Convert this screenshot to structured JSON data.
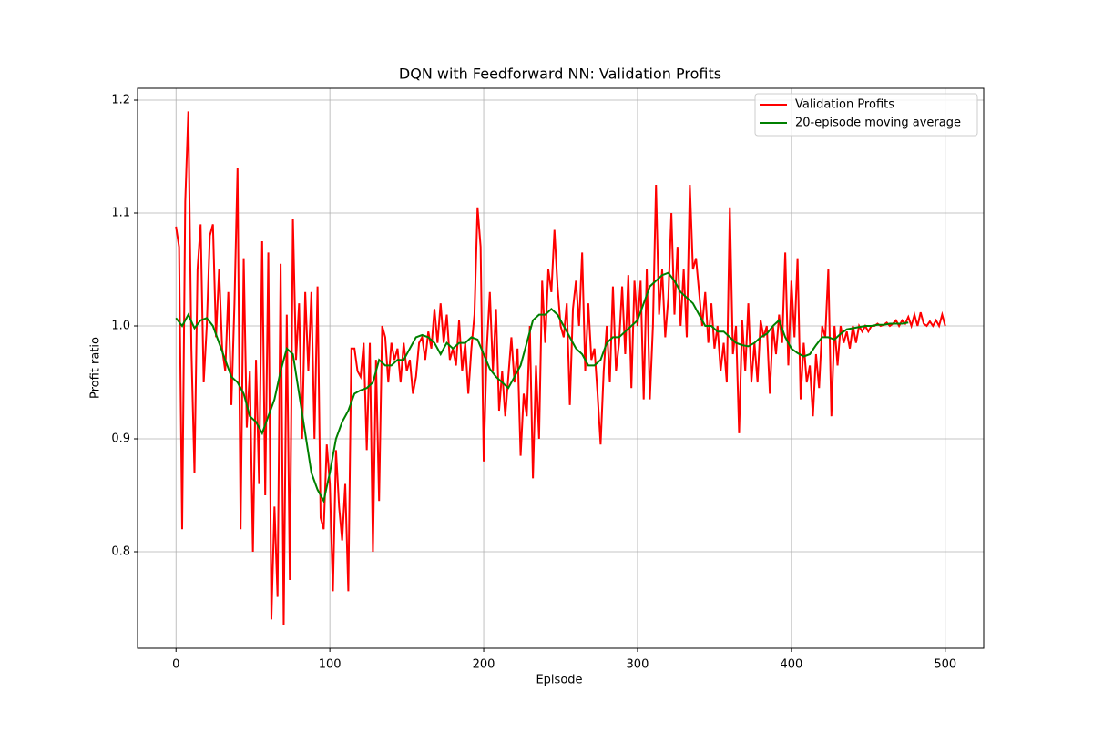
{
  "chart_data": {
    "type": "line",
    "title": "DQN with Feedforward NN: Validation Profits",
    "x_label": "Episode",
    "y_label": "Profit ratio",
    "xlim": [
      -25,
      525
    ],
    "xticks": [
      0,
      100,
      200,
      300,
      400,
      500
    ],
    "ylim": [
      0.7145,
      1.2105
    ],
    "yticks": [
      0.8,
      0.9,
      {
        "value": 1,
        "label": "1.0"
      },
      1.1,
      1.2
    ],
    "grid": true,
    "legend": "upper right",
    "series": [
      {
        "name": "Validation Profits",
        "color": "#ff0000",
        "x": [
          0,
          2,
          4,
          6,
          8,
          10,
          12,
          14,
          16,
          18,
          20,
          22,
          24,
          26,
          28,
          30,
          32,
          34,
          36,
          38,
          40,
          42,
          44,
          46,
          48,
          50,
          52,
          54,
          56,
          58,
          60,
          62,
          64,
          66,
          68,
          70,
          72,
          74,
          76,
          78,
          80,
          82,
          84,
          86,
          88,
          90,
          92,
          94,
          96,
          98,
          100,
          102,
          104,
          106,
          108,
          110,
          112,
          114,
          116,
          118,
          120,
          122,
          124,
          126,
          128,
          130,
          132,
          134,
          136,
          138,
          140,
          142,
          144,
          146,
          148,
          150,
          152,
          154,
          156,
          158,
          160,
          162,
          164,
          166,
          168,
          170,
          172,
          174,
          176,
          178,
          180,
          182,
          184,
          186,
          188,
          190,
          192,
          194,
          196,
          198,
          200,
          202,
          204,
          206,
          208,
          210,
          212,
          214,
          216,
          218,
          220,
          222,
          224,
          226,
          228,
          230,
          232,
          234,
          236,
          238,
          240,
          242,
          244,
          246,
          248,
          250,
          252,
          254,
          256,
          258,
          260,
          262,
          264,
          266,
          268,
          270,
          272,
          274,
          276,
          278,
          280,
          282,
          284,
          286,
          288,
          290,
          292,
          294,
          296,
          298,
          300,
          302,
          304,
          306,
          308,
          310,
          312,
          314,
          316,
          318,
          320,
          322,
          324,
          326,
          328,
          330,
          332,
          334,
          336,
          338,
          340,
          342,
          344,
          346,
          348,
          350,
          352,
          354,
          356,
          358,
          360,
          362,
          364,
          366,
          368,
          370,
          372,
          374,
          376,
          378,
          380,
          382,
          384,
          386,
          388,
          390,
          392,
          394,
          396,
          398,
          400,
          402,
          404,
          406,
          408,
          410,
          412,
          414,
          416,
          418,
          420,
          422,
          424,
          426,
          428,
          430,
          432,
          434,
          436,
          438,
          440,
          442,
          444,
          446,
          448,
          450,
          452,
          454,
          456,
          458,
          460,
          462,
          464,
          466,
          468,
          470,
          472,
          474,
          476,
          478,
          480,
          482,
          484,
          486,
          488,
          490,
          492,
          494,
          496,
          498,
          500
        ],
        "values": [
          1.088,
          1.07,
          0.82,
          1.11,
          1.19,
          0.98,
          0.87,
          1.05,
          1.09,
          0.95,
          1.0,
          1.08,
          1.09,
          0.99,
          1.05,
          0.98,
          0.96,
          1.03,
          0.93,
          1.02,
          1.14,
          0.82,
          1.06,
          0.91,
          0.96,
          0.8,
          0.97,
          0.86,
          1.075,
          0.85,
          1.065,
          0.74,
          0.84,
          0.76,
          1.055,
          0.735,
          1.01,
          0.775,
          1.095,
          0.97,
          1.02,
          0.9,
          1.03,
          0.96,
          1.03,
          0.9,
          1.035,
          0.83,
          0.82,
          0.895,
          0.86,
          0.765,
          0.89,
          0.84,
          0.81,
          0.86,
          0.765,
          0.98,
          0.98,
          0.96,
          0.955,
          0.985,
          0.89,
          0.985,
          0.8,
          0.97,
          0.845,
          1.0,
          0.99,
          0.95,
          0.985,
          0.97,
          0.98,
          0.95,
          0.985,
          0.96,
          0.97,
          0.94,
          0.955,
          0.985,
          0.99,
          0.97,
          0.995,
          0.98,
          1.015,
          0.985,
          1.02,
          0.985,
          1.01,
          0.97,
          0.98,
          0.965,
          1.005,
          0.96,
          0.985,
          0.94,
          0.98,
          1.01,
          1.105,
          1.07,
          0.88,
          0.98,
          1.03,
          0.96,
          1.015,
          0.925,
          0.96,
          0.92,
          0.955,
          0.99,
          0.95,
          0.98,
          0.885,
          0.94,
          0.92,
          1.0,
          0.865,
          0.965,
          0.9,
          1.04,
          0.985,
          1.05,
          1.03,
          1.085,
          1.035,
          1.0,
          0.99,
          1.02,
          0.93,
          1.015,
          1.04,
          1.0,
          1.065,
          0.96,
          1.02,
          0.97,
          0.98,
          0.94,
          0.895,
          0.96,
          1.0,
          0.95,
          1.035,
          0.96,
          0.985,
          1.035,
          0.975,
          1.045,
          0.945,
          1.04,
          1.0,
          1.04,
          0.935,
          1.05,
          0.935,
          1.0,
          1.125,
          1.01,
          1.05,
          0.99,
          1.025,
          1.1,
          1.01,
          1.07,
          1.0,
          1.05,
          0.99,
          1.125,
          1.05,
          1.06,
          1.03,
          1.0,
          1.03,
          0.985,
          1.02,
          0.98,
          1.0,
          0.96,
          0.985,
          0.95,
          1.105,
          0.975,
          1.0,
          0.905,
          1.005,
          0.96,
          1.02,
          0.95,
          0.985,
          0.95,
          1.005,
          0.99,
          1.0,
          0.94,
          1.0,
          0.975,
          1.01,
          0.985,
          1.065,
          0.965,
          1.04,
          0.99,
          1.06,
          0.935,
          0.985,
          0.95,
          0.965,
          0.92,
          0.975,
          0.945,
          1.0,
          0.99,
          1.05,
          0.92,
          1.0,
          0.965,
          1.0,
          0.985,
          0.995,
          0.98,
          1.0,
          0.985,
          1.0,
          0.995,
          1.0,
          0.995,
          1.0,
          1.0,
          1.002,
          1.0,
          1.001,
          1.003,
          1.0,
          1.002,
          1.005,
          1.0,
          1.005,
          1.002,
          1.008,
          1.0,
          1.01,
          1.0,
          1.012,
          1.002,
          1.0,
          1.004,
          1.0,
          1.005,
          1.0,
          1.01,
          1.0
        ]
      },
      {
        "name": "20-episode moving average",
        "color": "#008000",
        "x": [
          0,
          4,
          8,
          12,
          16,
          20,
          24,
          28,
          32,
          36,
          40,
          44,
          48,
          52,
          56,
          60,
          64,
          68,
          72,
          76,
          80,
          84,
          88,
          92,
          96,
          100,
          104,
          108,
          112,
          116,
          120,
          124,
          128,
          132,
          136,
          140,
          144,
          148,
          152,
          156,
          160,
          164,
          168,
          172,
          176,
          180,
          184,
          188,
          192,
          196,
          200,
          204,
          208,
          212,
          216,
          220,
          224,
          228,
          232,
          236,
          240,
          244,
          248,
          252,
          256,
          260,
          264,
          268,
          272,
          276,
          280,
          284,
          288,
          292,
          296,
          300,
          304,
          308,
          312,
          316,
          320,
          324,
          328,
          332,
          336,
          340,
          344,
          348,
          352,
          356,
          360,
          364,
          368,
          372,
          376,
          380,
          384,
          388,
          392,
          396,
          400,
          404,
          408,
          412,
          416,
          420,
          424,
          428,
          432,
          436,
          440,
          444,
          448,
          452,
          456,
          460,
          464,
          468,
          472,
          476
        ],
        "values": [
          1.007,
          1.0,
          1.01,
          0.998,
          1.005,
          1.007,
          1.0,
          0.985,
          0.97,
          0.955,
          0.95,
          0.94,
          0.92,
          0.915,
          0.905,
          0.92,
          0.935,
          0.96,
          0.98,
          0.975,
          0.94,
          0.905,
          0.87,
          0.855,
          0.845,
          0.87,
          0.9,
          0.915,
          0.925,
          0.94,
          0.943,
          0.945,
          0.95,
          0.97,
          0.965,
          0.965,
          0.97,
          0.97,
          0.98,
          0.99,
          0.992,
          0.99,
          0.985,
          0.975,
          0.985,
          0.98,
          0.985,
          0.985,
          0.99,
          0.988,
          0.975,
          0.962,
          0.955,
          0.95,
          0.945,
          0.955,
          0.965,
          0.985,
          1.005,
          1.01,
          1.01,
          1.015,
          1.01,
          1.0,
          0.99,
          0.98,
          0.975,
          0.965,
          0.965,
          0.97,
          0.985,
          0.99,
          0.99,
          0.995,
          1.0,
          1.005,
          1.02,
          1.035,
          1.04,
          1.045,
          1.047,
          1.04,
          1.03,
          1.025,
          1.02,
          1.01,
          1.0,
          1.0,
          0.995,
          0.995,
          0.99,
          0.985,
          0.983,
          0.982,
          0.985,
          0.99,
          0.993,
          1.0,
          1.005,
          0.99,
          0.98,
          0.976,
          0.973,
          0.975,
          0.983,
          0.99,
          0.99,
          0.988,
          0.993,
          0.997,
          0.998,
          0.999,
          1.0,
          1.0,
          1.001,
          1.001,
          1.002,
          1.002,
          1.002,
          1.003
        ]
      }
    ]
  }
}
